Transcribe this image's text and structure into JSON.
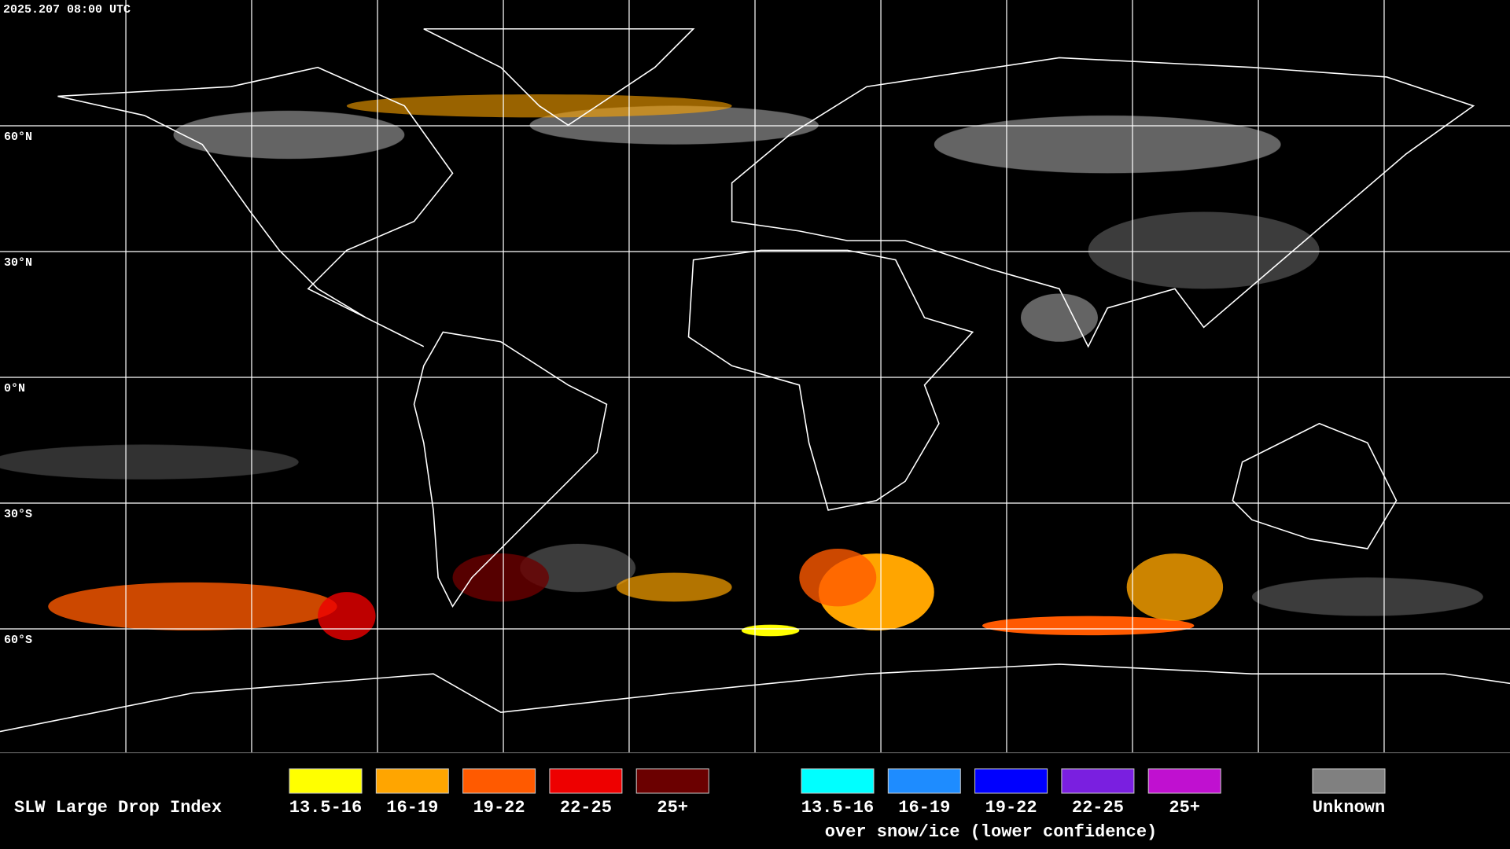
{
  "header": {
    "timestamp": "2025.207 08:00 UTC"
  },
  "latitude_labels": [
    "60°N",
    "30°N",
    "0°N",
    "30°S",
    "60°S"
  ],
  "legend": {
    "title": "SLW Large Drop Index",
    "items": [
      {
        "label": "13.5-16",
        "color": "#ffff00"
      },
      {
        "label": "16-19",
        "color": "#ffa500"
      },
      {
        "label": "19-22",
        "color": "#ff5a00"
      },
      {
        "label": "22-25",
        "color": "#ee0000"
      },
      {
        "label": "25+",
        "color": "#6b0000"
      }
    ],
    "snow_items": [
      {
        "label": "13.5-16",
        "color": "#00ffff"
      },
      {
        "label": "16-19",
        "color": "#1e8cff"
      },
      {
        "label": "19-22",
        "color": "#0000ff"
      },
      {
        "label": "22-25",
        "color": "#7a1fe0"
      },
      {
        "label": "25+",
        "color": "#c010d0"
      }
    ],
    "snow_caption": "over snow/ice (lower confidence)",
    "unknown": {
      "label": "Unknown",
      "color": "#808080"
    }
  }
}
